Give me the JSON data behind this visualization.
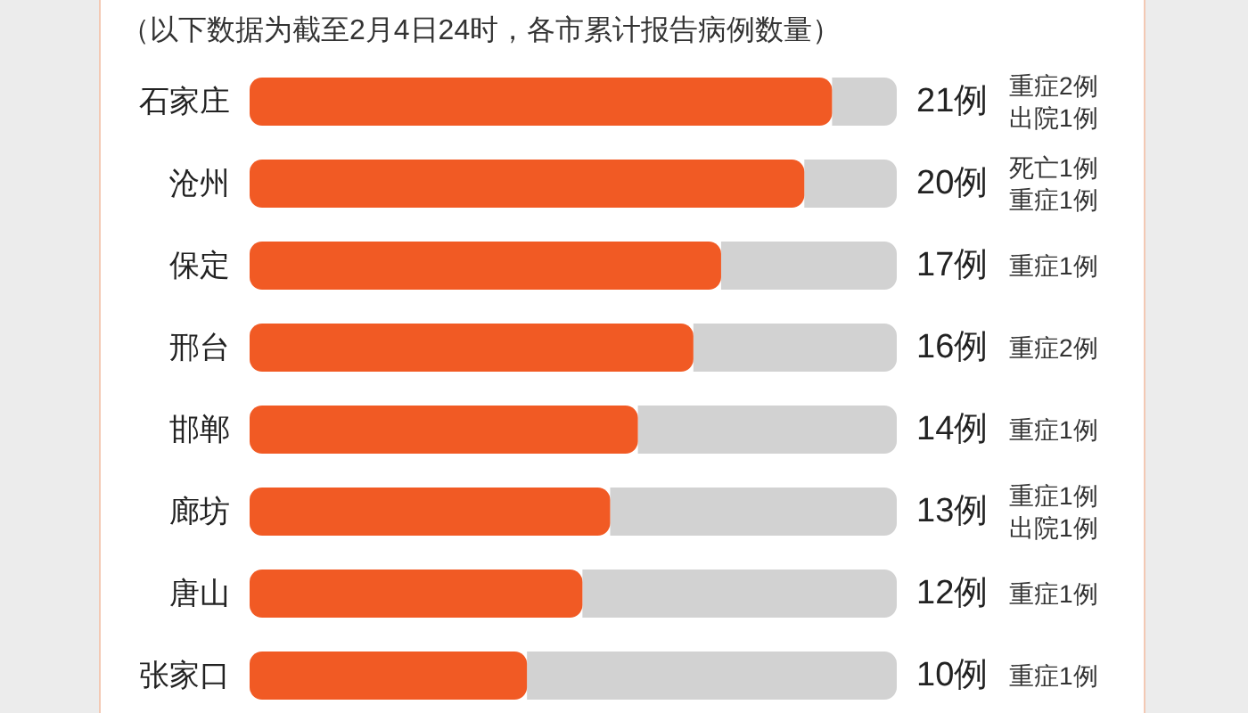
{
  "chart_data": {
    "type": "bar",
    "orientation": "horizontal",
    "title": "（以下数据为截至2月4日24时，各市累计报告病例数量）",
    "categories": [
      "石家庄",
      "沧州",
      "保定",
      "邢台",
      "邯郸",
      "廊坊",
      "唐山",
      "张家口"
    ],
    "values": [
      21,
      20,
      17,
      16,
      14,
      13,
      12,
      10
    ],
    "color": "#f15a24",
    "value_labels": [
      "21例",
      "20例",
      "17例",
      "16例",
      "14例",
      "13例",
      "12例",
      "10例"
    ],
    "annotations": [
      "重症2例出院1例",
      "死亡1例重症1例",
      "重症1例",
      "重症2例",
      "重症1例",
      "重症1例出院1例",
      "重症1例",
      "重症1例"
    ]
  }
}
